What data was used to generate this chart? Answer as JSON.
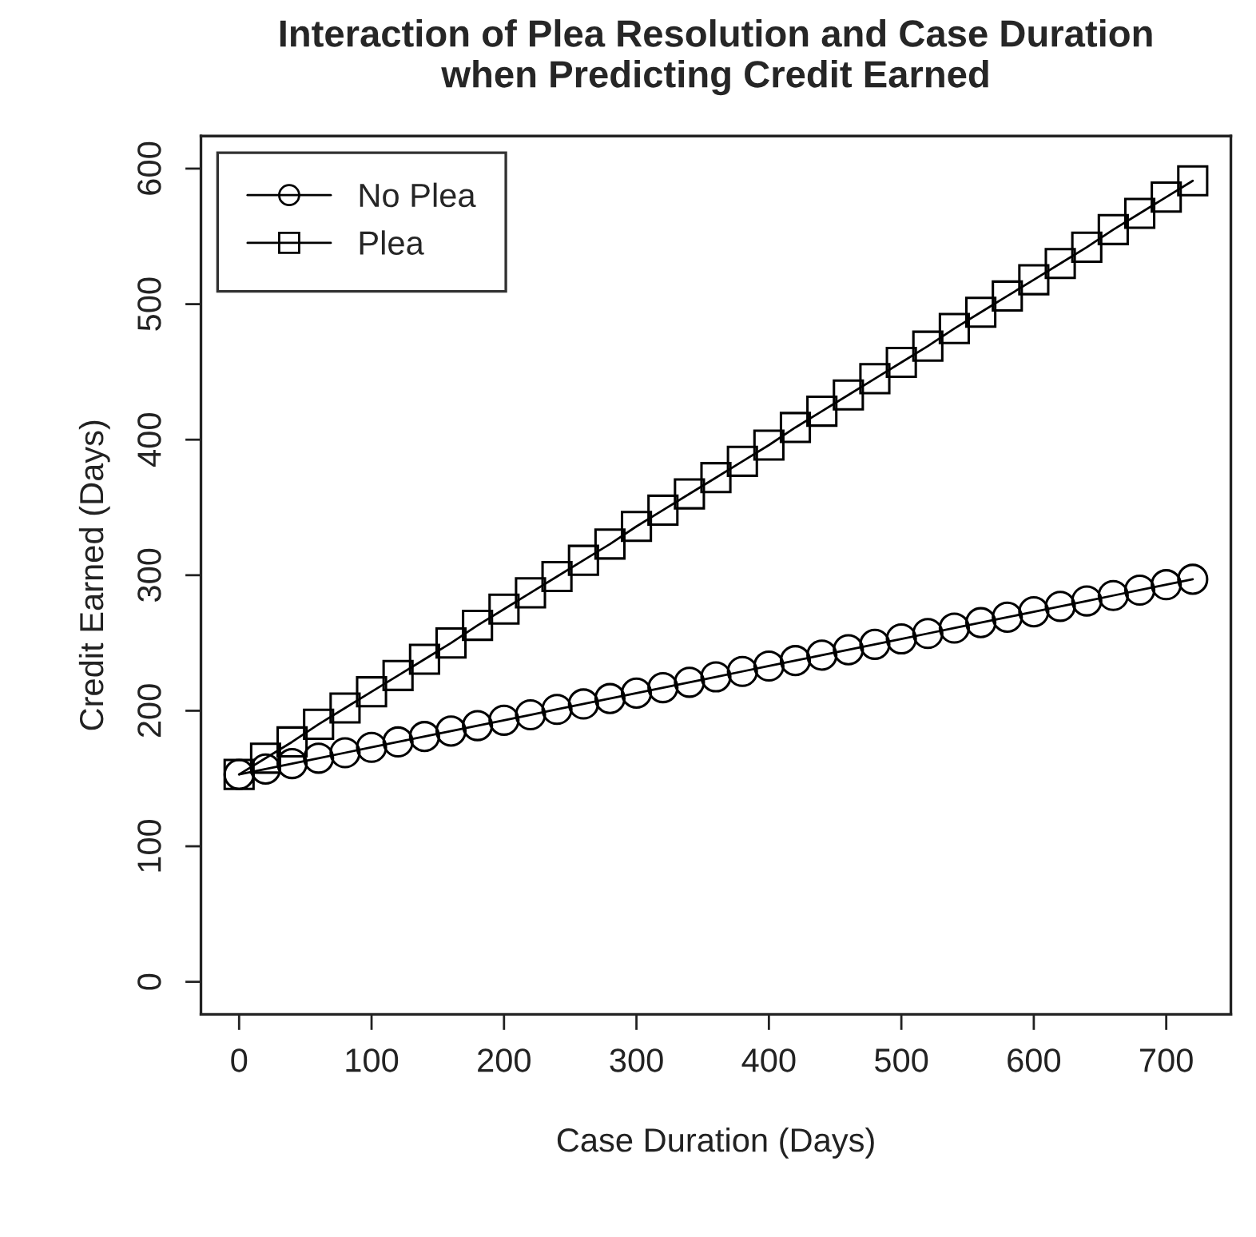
{
  "chart_data": {
    "type": "line",
    "title": "Interaction of Plea Resolution and Case Duration\nwhen Predicting Credit Earned",
    "xlabel": "Case Duration (Days)",
    "ylabel": "Credit Earned (Days)",
    "x": [
      0,
      20,
      40,
      60,
      80,
      100,
      120,
      140,
      160,
      180,
      200,
      220,
      240,
      260,
      280,
      300,
      320,
      340,
      360,
      380,
      400,
      420,
      440,
      460,
      480,
      500,
      520,
      540,
      560,
      580,
      600,
      620,
      640,
      660,
      680,
      700,
      720
    ],
    "series": [
      {
        "name": "No Plea",
        "color": "#000000",
        "marker": "circle",
        "values": [
          153,
          157,
          161,
          165,
          169,
          173,
          177,
          181,
          185,
          189,
          193,
          197,
          201,
          205,
          209,
          213,
          217,
          221,
          225,
          229,
          233,
          237,
          241,
          245,
          249,
          253,
          257,
          261,
          265,
          269,
          273,
          277,
          281,
          285,
          289,
          293,
          297
        ]
      },
      {
        "name": "Plea",
        "color": "#000000",
        "marker": "square",
        "values": [
          153,
          165,
          177,
          190,
          202,
          214,
          226,
          238,
          250,
          263,
          275,
          287,
          299,
          311,
          323,
          336,
          348,
          360,
          372,
          384,
          396,
          409,
          421,
          433,
          445,
          457,
          469,
          482,
          494,
          506,
          518,
          530,
          542,
          555,
          567,
          579,
          591
        ]
      }
    ],
    "xlim": [
      -28.8,
      748.8
    ],
    "ylim": [
      -24,
      624
    ],
    "xticks": [
      0,
      100,
      200,
      300,
      400,
      500,
      600,
      700
    ],
    "yticks": [
      0,
      100,
      200,
      300,
      400,
      500,
      600
    ],
    "grid": false,
    "legend": "top left",
    "line_style": "solid"
  }
}
